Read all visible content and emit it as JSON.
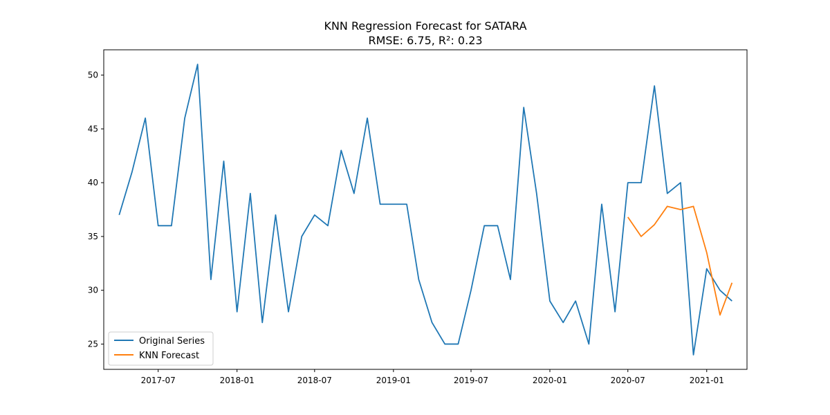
{
  "chart_data": {
    "type": "line",
    "title": "KNN Regression Forecast for SATARA",
    "subtitle": "RMSE: 6.75, R²: 0.23",
    "xlabel": "",
    "ylabel": "",
    "ylim": [
      22.65,
      52.35
    ],
    "xlim": [
      "2017-02-24",
      "2021-04-05"
    ],
    "x_ticks": [
      "2017-07",
      "2018-01",
      "2018-07",
      "2019-01",
      "2019-07",
      "2020-01",
      "2020-07",
      "2021-01"
    ],
    "y_ticks": [
      25,
      30,
      35,
      40,
      45,
      50
    ],
    "grid": false,
    "legend_position": "lower-left",
    "series": [
      {
        "name": "Original Series",
        "color": "#1f77b4",
        "x": [
          "2017-04-01",
          "2017-05-01",
          "2017-06-01",
          "2017-07-01",
          "2017-08-01",
          "2017-09-01",
          "2017-10-01",
          "2017-11-01",
          "2017-12-01",
          "2018-01-01",
          "2018-02-01",
          "2018-03-01",
          "2018-04-01",
          "2018-05-01",
          "2018-06-01",
          "2018-07-01",
          "2018-08-01",
          "2018-09-01",
          "2018-10-01",
          "2018-11-01",
          "2018-12-01",
          "2019-01-01",
          "2019-02-01",
          "2019-03-01",
          "2019-04-01",
          "2019-05-01",
          "2019-06-01",
          "2019-07-01",
          "2019-08-01",
          "2019-09-01",
          "2019-10-01",
          "2019-11-01",
          "2019-12-01",
          "2020-01-01",
          "2020-02-01",
          "2020-03-01",
          "2020-04-01",
          "2020-05-01",
          "2020-06-01",
          "2020-07-01",
          "2020-08-01",
          "2020-09-01",
          "2020-10-01",
          "2020-11-01",
          "2020-12-01",
          "2021-01-01",
          "2021-02-01",
          "2021-03-01"
        ],
        "values": [
          37,
          41,
          46,
          36,
          36,
          46,
          51,
          31,
          42,
          28,
          39,
          27,
          37,
          28,
          35,
          37,
          36,
          43,
          39,
          46,
          38,
          38,
          38,
          31,
          27,
          25,
          25,
          30,
          36,
          36,
          31,
          47,
          39,
          29,
          27,
          29,
          25,
          38,
          28,
          40,
          40,
          49,
          39,
          40,
          24,
          32,
          30,
          29
        ]
      },
      {
        "name": "KNN Forecast",
        "color": "#ff7f0e",
        "x": [
          "2020-07-01",
          "2020-08-01",
          "2020-09-01",
          "2020-10-01",
          "2020-11-01",
          "2020-12-01",
          "2021-01-01",
          "2021-02-01",
          "2021-03-01"
        ],
        "values": [
          36.8,
          35.0,
          36.1,
          37.8,
          37.5,
          37.8,
          33.5,
          27.7,
          30.7
        ]
      }
    ]
  }
}
